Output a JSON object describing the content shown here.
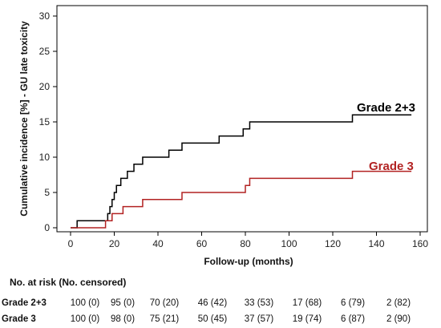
{
  "chart_data": {
    "type": "line",
    "xlabel": "Follow-up (months)",
    "ylabel": "Cumulative incidence [%] - GU late toxicity",
    "xlim": [
      0,
      160
    ],
    "ylim": [
      0,
      32
    ],
    "xticks": [
      0,
      20,
      40,
      60,
      80,
      100,
      120,
      140,
      160
    ],
    "yticks": [
      0,
      5,
      10,
      15,
      20,
      25,
      30
    ],
    "grid": false,
    "series": [
      {
        "name": "Grade 2+3",
        "color": "#000000",
        "x": [
          0,
          3,
          16,
          17,
          18,
          19,
          20,
          21,
          23,
          26,
          29,
          33,
          45,
          51,
          68,
          79,
          82,
          129,
          156
        ],
        "y": [
          0,
          1,
          1,
          2,
          3,
          4,
          5,
          6,
          7,
          8,
          9,
          10,
          11,
          12,
          13,
          14,
          15,
          16,
          16
        ]
      },
      {
        "name": "Grade 3",
        "color": "#b22222",
        "x": [
          0,
          16,
          19,
          24,
          33,
          51,
          80,
          82,
          129,
          156
        ],
        "y": [
          0,
          1,
          2,
          3,
          4,
          5,
          6,
          7,
          8,
          8
        ]
      }
    ]
  },
  "risk_table": {
    "title": "No. at risk (No. censored)",
    "rows": [
      {
        "label": "Grade 2+3",
        "cells": [
          "100 (0)",
          "95 (0)",
          "70 (20)",
          "46 (42)",
          "33 (53)",
          "17 (68)",
          "6 (79)",
          "2 (82)"
        ]
      },
      {
        "label": "Grade 3",
        "cells": [
          "100 (0)",
          "98 (0)",
          "75 (21)",
          "50 (45)",
          "37 (57)",
          "19 (74)",
          "6 (87)",
          "2 (90)"
        ]
      }
    ]
  }
}
